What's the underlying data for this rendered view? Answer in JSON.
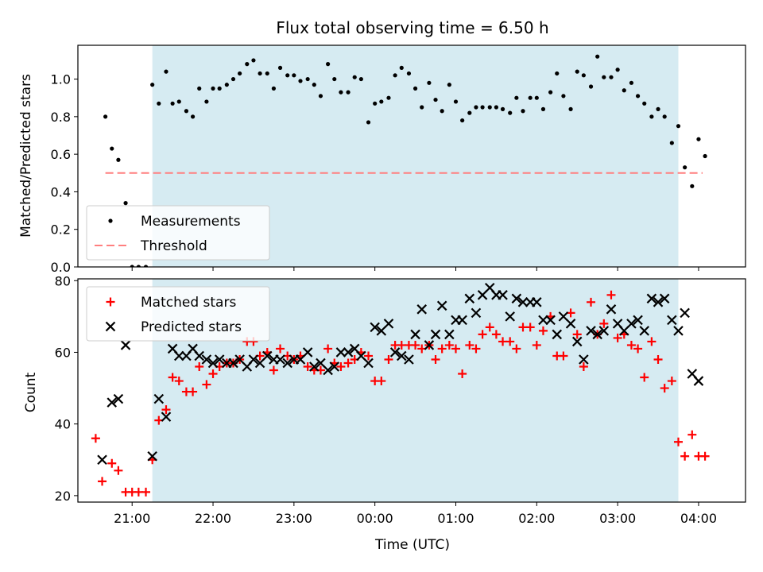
{
  "figure": {
    "title": "Flux total observing time = 6.50 h"
  },
  "chart_data": [
    {
      "type": "scatter",
      "ylabel": "Matched/Predicted stars",
      "xlim": [
        20.33,
        28.58
      ],
      "ylim": [
        0,
        1.18
      ],
      "y_ticks": [
        0.0,
        0.2,
        0.4,
        0.6,
        0.8,
        1.0
      ],
      "y_tick_labels": [
        "0.0",
        "0.2",
        "0.4",
        "0.6",
        "0.8",
        "1.0"
      ],
      "x_ticks": [
        21,
        22,
        23,
        24,
        25,
        26,
        27,
        28
      ],
      "shaded_span": [
        21.25,
        27.75
      ],
      "shade_color": "#add8e6",
      "legend_position": "lower-left",
      "legend": [
        {
          "label": "Measurements",
          "marker": "dot",
          "color": "#000000"
        },
        {
          "label": "Threshold",
          "marker": "dashed-line",
          "color": "#ff7f7f"
        }
      ],
      "threshold": {
        "x_start": 20.67,
        "x_end": 28.05,
        "y": 0.5,
        "color": "#ff7f7f"
      },
      "series": [
        {
          "name": "Measurements",
          "color": "#000000",
          "x": [
            20.67,
            20.75,
            20.83,
            20.92,
            21.0,
            21.08,
            21.17,
            21.25,
            21.33,
            21.42,
            21.5,
            21.58,
            21.67,
            21.75,
            21.83,
            21.92,
            22.0,
            22.08,
            22.17,
            22.25,
            22.33,
            22.42,
            22.5,
            22.58,
            22.67,
            22.75,
            22.83,
            22.92,
            23.0,
            23.08,
            23.17,
            23.25,
            23.33,
            23.42,
            23.5,
            23.58,
            23.67,
            23.75,
            23.83,
            23.92,
            24.0,
            24.08,
            24.17,
            24.25,
            24.33,
            24.42,
            24.5,
            24.58,
            24.67,
            24.75,
            24.83,
            24.92,
            25.0,
            25.08,
            25.17,
            25.25,
            25.33,
            25.42,
            25.5,
            25.58,
            25.67,
            25.75,
            25.83,
            25.92,
            26.0,
            26.08,
            26.17,
            26.25,
            26.33,
            26.42,
            26.5,
            26.58,
            26.67,
            26.75,
            26.83,
            26.92,
            27.0,
            27.08,
            27.17,
            27.25,
            27.33,
            27.42,
            27.5,
            27.58,
            27.67,
            27.75,
            27.83,
            27.92,
            28.0,
            28.08
          ],
          "y": [
            0.8,
            0.63,
            0.57,
            0.34,
            0.0,
            0.0,
            0.0,
            0.97,
            0.87,
            1.04,
            0.87,
            0.88,
            0.83,
            0.8,
            0.95,
            0.88,
            0.95,
            0.95,
            0.97,
            1.0,
            1.03,
            1.08,
            1.1,
            1.03,
            1.03,
            0.95,
            1.06,
            1.02,
            1.02,
            0.99,
            1.0,
            0.97,
            0.91,
            1.08,
            1.0,
            0.93,
            0.93,
            1.01,
            1.0,
            0.77,
            0.87,
            0.88,
            0.9,
            1.02,
            1.06,
            1.03,
            0.95,
            0.85,
            0.98,
            0.89,
            0.83,
            0.97,
            0.88,
            0.78,
            0.82,
            0.85,
            0.85,
            0.85,
            0.85,
            0.84,
            0.82,
            0.9,
            0.83,
            0.9,
            0.9,
            0.84,
            0.93,
            1.03,
            0.91,
            0.84,
            1.04,
            1.02,
            0.96,
            1.12,
            1.01,
            1.01,
            1.05,
            0.94,
            0.98,
            0.91,
            0.87,
            0.8,
            0.84,
            0.8,
            0.66,
            0.75,
            0.53,
            0.43,
            0.68,
            0.59
          ]
        }
      ]
    },
    {
      "type": "scatter",
      "xlabel": "Time (UTC)",
      "ylabel": "Count",
      "xlim": [
        20.33,
        28.58
      ],
      "ylim": [
        18.2,
        80.5
      ],
      "y_ticks": [
        20,
        40,
        60,
        80
      ],
      "y_tick_labels": [
        "20",
        "40",
        "60",
        "80"
      ],
      "x_ticks": [
        21,
        22,
        23,
        24,
        25,
        26,
        27,
        28
      ],
      "x_tick_labels": [
        "21:00",
        "22:00",
        "23:00",
        "00:00",
        "01:00",
        "02:00",
        "03:00",
        "04:00"
      ],
      "shaded_span": [
        21.25,
        27.75
      ],
      "shade_color": "#add8e6",
      "legend_position": "upper-left",
      "legend": [
        {
          "label": "Matched stars",
          "marker": "plus",
          "color": "#ff0000"
        },
        {
          "label": "Predicted stars",
          "marker": "x",
          "color": "#000000"
        }
      ],
      "series": [
        {
          "name": "Matched stars",
          "marker": "plus",
          "color": "#ff0000",
          "x": [
            20.55,
            20.63,
            20.75,
            20.83,
            20.92,
            21.0,
            21.08,
            21.17,
            21.25,
            21.33,
            21.42,
            21.5,
            21.58,
            21.67,
            21.75,
            21.83,
            21.92,
            22.0,
            22.08,
            22.17,
            22.25,
            22.33,
            22.42,
            22.5,
            22.58,
            22.67,
            22.75,
            22.83,
            22.92,
            23.0,
            23.08,
            23.17,
            23.25,
            23.33,
            23.42,
            23.5,
            23.58,
            23.67,
            23.75,
            23.83,
            23.92,
            24.0,
            24.08,
            24.17,
            24.25,
            24.33,
            24.42,
            24.5,
            24.58,
            24.67,
            24.75,
            24.83,
            24.92,
            25.0,
            25.08,
            25.17,
            25.25,
            25.33,
            25.42,
            25.5,
            25.58,
            25.67,
            25.75,
            25.83,
            25.92,
            26.0,
            26.08,
            26.17,
            26.25,
            26.33,
            26.42,
            26.5,
            26.58,
            26.67,
            26.75,
            26.83,
            26.92,
            27.0,
            27.08,
            27.17,
            27.25,
            27.33,
            27.42,
            27.5,
            27.58,
            27.67,
            27.75,
            27.83,
            27.92,
            28.0,
            28.08
          ],
          "y": [
            36,
            24,
            29,
            27,
            21,
            21,
            21,
            21,
            30,
            41,
            44,
            53,
            52,
            49,
            49,
            56,
            51,
            54,
            56,
            57,
            57,
            58,
            63,
            63,
            59,
            60,
            55,
            61,
            59,
            58,
            59,
            56,
            55,
            55,
            61,
            57,
            56,
            57,
            58,
            60,
            59,
            52,
            52,
            58,
            62,
            62,
            62,
            62,
            61,
            62,
            58,
            61,
            62,
            61,
            54,
            62,
            61,
            65,
            67,
            65,
            63,
            63,
            61,
            67,
            67,
            62,
            66,
            70,
            59,
            59,
            71,
            65,
            56,
            74,
            65,
            68,
            76,
            64,
            65,
            62,
            61,
            53,
            63,
            58,
            50,
            52,
            35,
            31,
            37,
            31,
            31
          ]
        },
        {
          "name": "Predicted stars",
          "marker": "x",
          "color": "#000000",
          "x": [
            20.63,
            20.75,
            20.83,
            20.92,
            21.25,
            21.33,
            21.42,
            21.5,
            21.58,
            21.67,
            21.75,
            21.83,
            21.92,
            22.0,
            22.08,
            22.17,
            22.25,
            22.33,
            22.42,
            22.5,
            22.58,
            22.67,
            22.75,
            22.83,
            22.92,
            23.0,
            23.08,
            23.17,
            23.25,
            23.33,
            23.42,
            23.5,
            23.58,
            23.67,
            23.75,
            23.83,
            23.92,
            24.0,
            24.08,
            24.17,
            24.25,
            24.33,
            24.42,
            24.5,
            24.58,
            24.67,
            24.75,
            24.83,
            24.92,
            25.0,
            25.08,
            25.17,
            25.25,
            25.33,
            25.42,
            25.5,
            25.58,
            25.67,
            25.75,
            25.83,
            25.92,
            26.0,
            26.08,
            26.17,
            26.25,
            26.33,
            26.42,
            26.5,
            26.58,
            26.67,
            26.75,
            26.83,
            26.92,
            27.0,
            27.08,
            27.17,
            27.25,
            27.33,
            27.42,
            27.5,
            27.58,
            27.67,
            27.75,
            27.83,
            27.92,
            28.0
          ],
          "y": [
            30,
            46,
            47,
            62,
            31,
            47,
            42,
            61,
            59,
            59,
            61,
            59,
            58,
            57,
            58,
            57,
            57,
            58,
            56,
            58,
            57,
            59,
            58,
            58,
            57,
            58,
            58,
            60,
            56,
            57,
            55,
            56,
            60,
            60,
            61,
            59,
            57,
            67,
            66,
            68,
            60,
            59,
            58,
            65,
            72,
            62,
            65,
            73,
            65,
            69,
            69,
            75,
            71,
            76,
            78,
            76,
            76,
            70,
            75,
            74,
            74,
            74,
            69,
            69,
            65,
            70,
            68,
            63,
            58,
            66,
            65,
            66,
            72,
            68,
            66,
            68,
            69,
            66,
            75,
            74,
            75,
            69,
            66,
            71,
            54,
            52
          ]
        }
      ]
    }
  ]
}
